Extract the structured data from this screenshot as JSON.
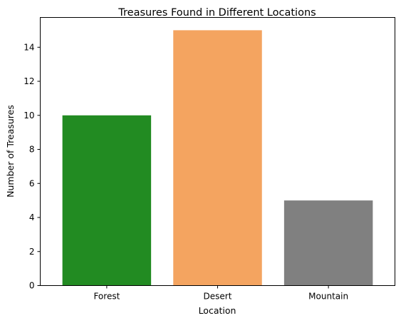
{
  "chart_data": {
    "type": "bar",
    "title": "Treasures Found in Different Locations",
    "xlabel": "Location",
    "ylabel": "Number of Treasures",
    "categories": [
      "Forest",
      "Desert",
      "Mountain"
    ],
    "values": [
      10,
      15,
      5
    ],
    "colors": [
      "#228b22",
      "#f4a460",
      "#808080"
    ],
    "ylim": [
      0,
      15.75
    ],
    "yticks": [
      0,
      2,
      4,
      6,
      8,
      10,
      12,
      14
    ],
    "grid": false
  }
}
